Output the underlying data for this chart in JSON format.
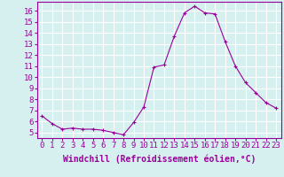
{
  "x": [
    0,
    1,
    2,
    3,
    4,
    5,
    6,
    7,
    8,
    9,
    10,
    11,
    12,
    13,
    14,
    15,
    16,
    17,
    18,
    19,
    20,
    21,
    22,
    23
  ],
  "y": [
    6.5,
    5.8,
    5.3,
    5.4,
    5.3,
    5.3,
    5.2,
    5.0,
    4.8,
    5.9,
    7.3,
    10.9,
    11.1,
    13.7,
    15.8,
    16.4,
    15.8,
    15.7,
    13.2,
    11.0,
    9.5,
    8.6,
    7.7,
    7.2
  ],
  "line_color": "#990099",
  "marker": "+",
  "marker_size": 3,
  "xlabel": "Windchill (Refroidissement éolien,°C)",
  "xlabel_fontsize": 7,
  "ylabel_ticks": [
    5,
    6,
    7,
    8,
    9,
    10,
    11,
    12,
    13,
    14,
    15,
    16
  ],
  "ylim": [
    4.5,
    16.8
  ],
  "xlim": [
    -0.5,
    23.5
  ],
  "background_color": "#d6f0f0",
  "grid_color": "#ffffff",
  "tick_label_color": "#990099",
  "tick_label_fontsize": 6.5
}
